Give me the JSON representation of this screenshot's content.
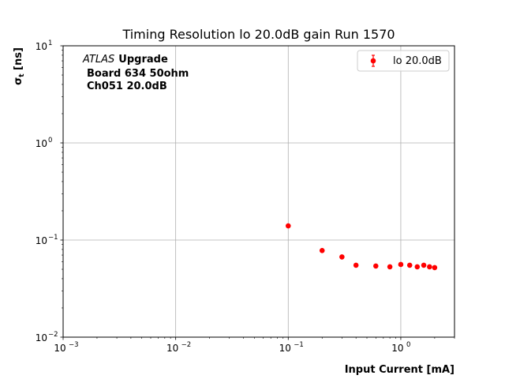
{
  "chart_data": {
    "type": "scatter",
    "title": "Timing Resolution lo 20.0dB gain Run 1570",
    "xlabel": "Input Current [mA]",
    "ylabel_main": "σ",
    "ylabel_sub": "t",
    "ylabel_unit": " [ns]",
    "xscale": "log",
    "yscale": "log",
    "xlim": [
      0.001,
      3.0
    ],
    "ylim": [
      0.01,
      10
    ],
    "grid": true,
    "legend_position": "top-right",
    "annotation": {
      "atlas": "ATLAS",
      "upgrade": "Upgrade",
      "line2": "Board 634 50ohm",
      "line3": "Ch051 20.0dB"
    },
    "x_ticks": [
      {
        "value": 0.001,
        "base": "10",
        "exp": "−3"
      },
      {
        "value": 0.01,
        "base": "10",
        "exp": "−2"
      },
      {
        "value": 0.1,
        "base": "10",
        "exp": "−1"
      },
      {
        "value": 1,
        "base": "10",
        "exp": "0"
      }
    ],
    "y_ticks": [
      {
        "value": 0.01,
        "base": "10",
        "exp": "−2"
      },
      {
        "value": 0.1,
        "base": "10",
        "exp": "−1"
      },
      {
        "value": 1,
        "base": "10",
        "exp": "0"
      },
      {
        "value": 10,
        "base": "10",
        "exp": "1"
      }
    ],
    "series": [
      {
        "name": "lo 20.0dB",
        "color": "#ff0000",
        "points": [
          {
            "x": 0.1,
            "y": 0.14
          },
          {
            "x": 0.2,
            "y": 0.078
          },
          {
            "x": 0.3,
            "y": 0.067
          },
          {
            "x": 0.4,
            "y": 0.055
          },
          {
            "x": 0.6,
            "y": 0.054
          },
          {
            "x": 0.8,
            "y": 0.053
          },
          {
            "x": 1.0,
            "y": 0.056
          },
          {
            "x": 1.2,
            "y": 0.055
          },
          {
            "x": 1.4,
            "y": 0.053
          },
          {
            "x": 1.6,
            "y": 0.055
          },
          {
            "x": 1.8,
            "y": 0.053
          },
          {
            "x": 2.0,
            "y": 0.052
          }
        ]
      }
    ]
  }
}
